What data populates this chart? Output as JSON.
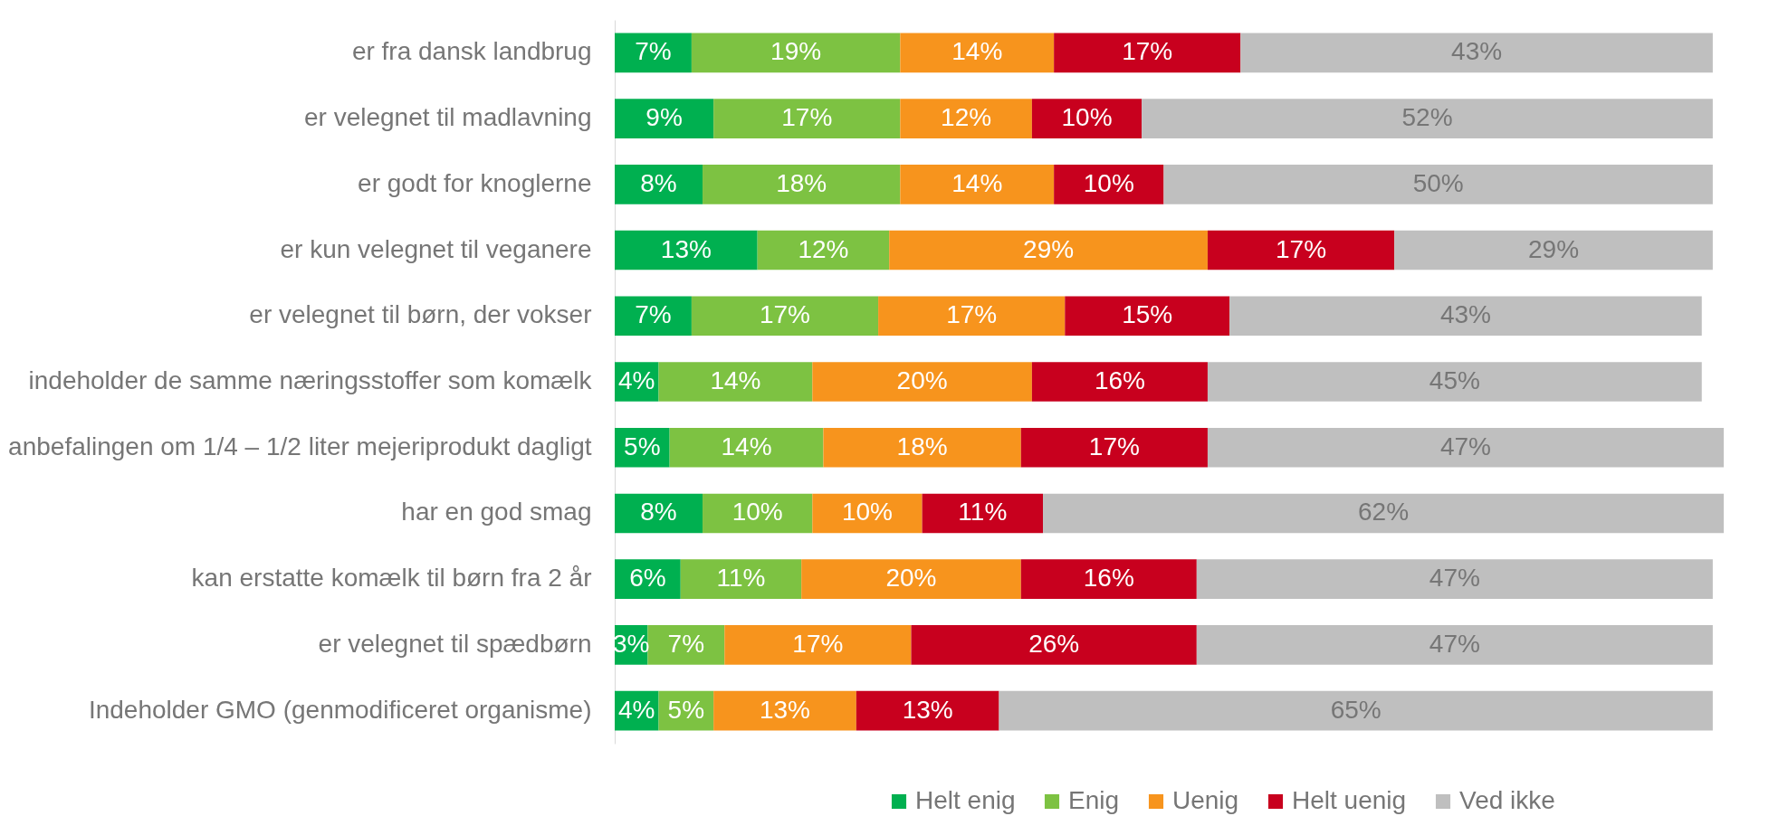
{
  "chart_data": {
    "type": "bar",
    "orientation": "horizontal",
    "stacked": true,
    "legend": "bottom",
    "tick_labels": "y",
    "categories": [
      "er fra dansk landbrug",
      "er velegnet til madlavning",
      "er godt for knoglerne",
      "er kun velegnet til veganere",
      "er velegnet til børn, der vokser",
      "indeholder de samme næringsstoffer som komælk",
      "anbefalingen om 1/4 – 1/2 liter mejeriprodukt dagligt",
      "har en god smag",
      "kan erstatte komælk til børn fra 2 år",
      "er velegnet til spædbørn",
      "Indeholder GMO (genmodificeret organisme)"
    ],
    "series": [
      {
        "name": "Helt enig",
        "color": "#00b050",
        "values": [
          7,
          9,
          8,
          13,
          7,
          4,
          5,
          8,
          6,
          3,
          4
        ],
        "value_labels": [
          "7%",
          "9%",
          "8%",
          "13%",
          "7%",
          "4%",
          "5%",
          "8%",
          "6%",
          "3%",
          "4%"
        ]
      },
      {
        "name": "Enig",
        "color": "#7dc242",
        "values": [
          19,
          17,
          18,
          12,
          17,
          14,
          14,
          10,
          11,
          7,
          5
        ],
        "value_labels": [
          "19%",
          "17%",
          "18%",
          "12%",
          "17%",
          "14%",
          "14%",
          "10%",
          "11%",
          "7%",
          "5%"
        ]
      },
      {
        "name": "Uenig",
        "color": "#f7941d",
        "values": [
          14,
          12,
          14,
          29,
          17,
          20,
          18,
          10,
          20,
          17,
          13
        ],
        "value_labels": [
          "14%",
          "12%",
          "14%",
          "29%",
          "17%",
          "20%",
          "18%",
          "10%",
          "20%",
          "17%",
          "13%"
        ]
      },
      {
        "name": "Helt uenig",
        "color": "#c8001e",
        "values": [
          17,
          10,
          10,
          17,
          15,
          16,
          17,
          11,
          16,
          26,
          13
        ],
        "value_labels": [
          "17%",
          "10%",
          "10%",
          "17%",
          "15%",
          "16%",
          "17%",
          "11%",
          "16%",
          "26%",
          "13%"
        ]
      },
      {
        "name": "Ved ikke",
        "color": "#bfbfbf",
        "values": [
          43,
          52,
          50,
          29,
          43,
          45,
          47,
          62,
          47,
          47,
          65
        ],
        "value_labels": [
          "43%",
          "52%",
          "50%",
          "29%",
          "43%",
          "45%",
          "47%",
          "62%",
          "47%",
          "47%",
          "65%"
        ]
      }
    ]
  }
}
